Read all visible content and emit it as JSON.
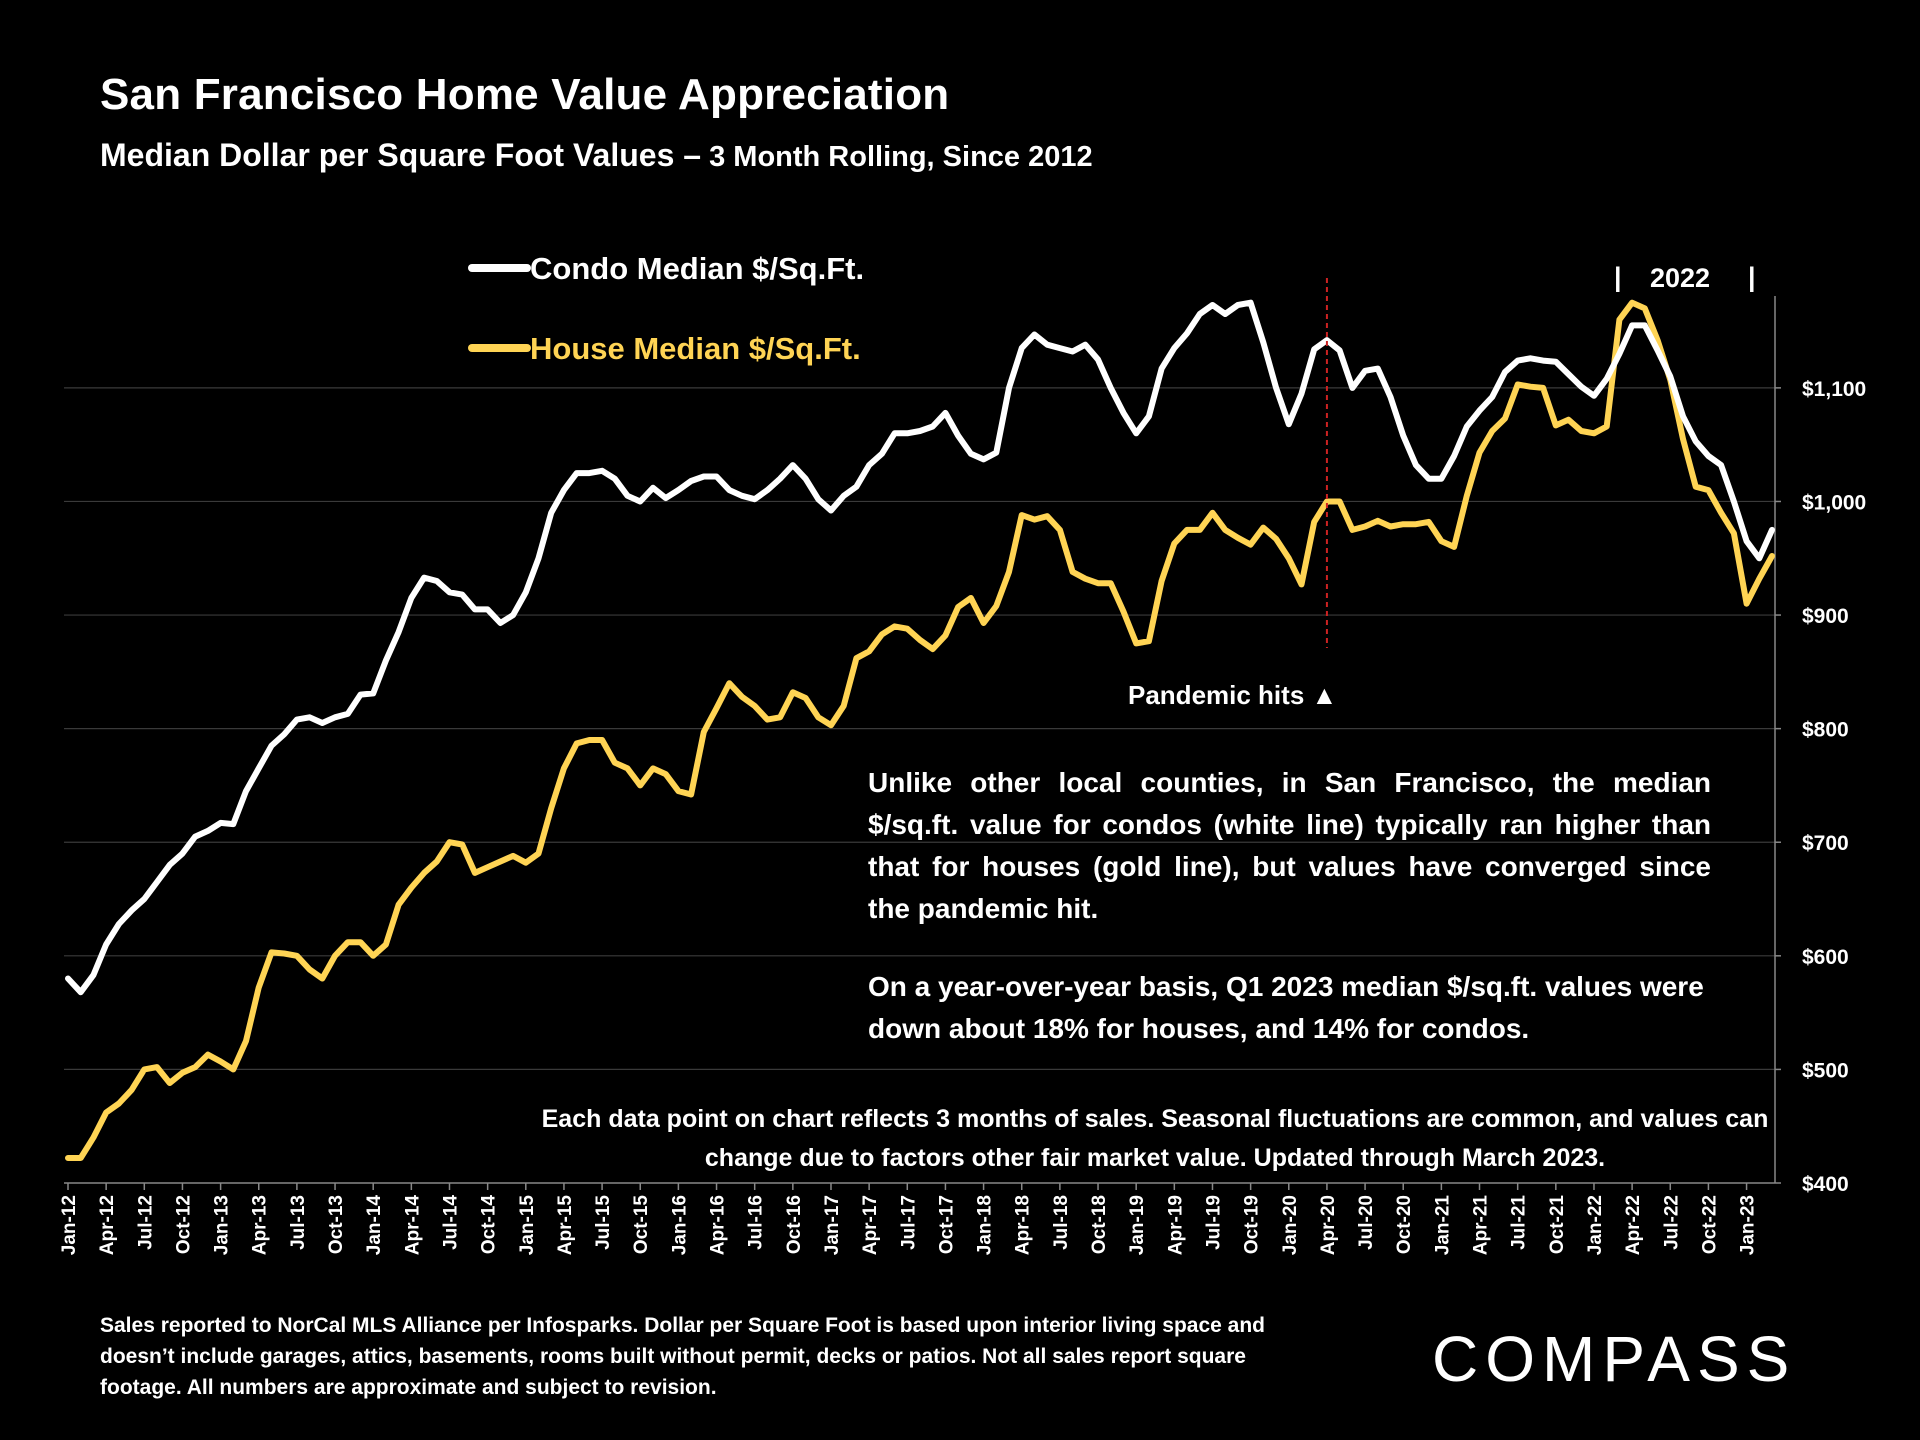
{
  "header": {
    "title": "San Francisco Home Value Appreciation",
    "subtitle_main": "Median Dollar per Square Foot Values –",
    "subtitle_small": " 3 Month Rolling, Since 2012"
  },
  "annotation": {
    "paragraph1": "Unlike other local counties, in San Francisco, the median $/sq.ft. value for condos (white line) typically ran higher than that for houses (gold line), but values have converged since the pandemic hit.",
    "paragraph2": "On a year-over-year basis, Q1 2023 median $/sq.ft. values were down about 18% for houses, and 14% for condos."
  },
  "note": "Each data point on chart reflects 3 months of sales. Seasonal fluctuations are common, and values can change due to factors other fair market value. Updated through March 2023.",
  "footer": "Sales reported to NorCal MLS Alliance per Infosparks. Dollar per Square Foot is based upon interior living space and doesn’t include garages, attics, basements, rooms built without permit, decks or patios. Not all sales report square footage. All numbers are approximate and subject to revision.",
  "brand": "COMPASS",
  "colors": {
    "condo": "#ffffff",
    "house": "#ffd454",
    "pandemic_line": "#cc2222",
    "grid": "#3a3a3a",
    "background": "#000000"
  },
  "chart_data": {
    "type": "line",
    "title": "San Francisco Home Value Appreciation",
    "ylim": [
      400,
      1180
    ],
    "yticks": [
      400,
      500,
      600,
      700,
      800,
      900,
      1000,
      1100
    ],
    "ytick_labels": [
      "$400",
      "$500",
      "$600",
      "$700",
      "$800",
      "$900",
      "$1,000",
      "$1,100"
    ],
    "xtick_labels": [
      "Jan-12",
      "Apr-12",
      "Jul-12",
      "Oct-12",
      "Jan-13",
      "Apr-13",
      "Jul-13",
      "Oct-13",
      "Jan-14",
      "Apr-14",
      "Jul-14",
      "Oct-14",
      "Jan-15",
      "Apr-15",
      "Jul-15",
      "Oct-15",
      "Jan-16",
      "Apr-16",
      "Jul-16",
      "Oct-16",
      "Jan-17",
      "Apr-17",
      "Jul-17",
      "Oct-17",
      "Jan-18",
      "Apr-18",
      "Jul-18",
      "Oct-18",
      "Jan-19",
      "Apr-19",
      "Jul-19",
      "Oct-19",
      "Jan-20",
      "Apr-20",
      "Jul-20",
      "Oct-20",
      "Jan-21",
      "Apr-21",
      "Jul-21",
      "Oct-21",
      "Jan-22",
      "Apr-22",
      "Jul-22",
      "Oct-22",
      "Jan-23"
    ],
    "x_start": "Jan-12",
    "x_end": "Mar-23",
    "legend": [
      "Condo Median $/Sq.Ft.",
      "House Median $/Sq.Ft."
    ],
    "series": [
      {
        "name": "Condo Median $/Sq.Ft.",
        "values": [
          580,
          568,
          583,
          610,
          628,
          640,
          650,
          665,
          680,
          690,
          705,
          710,
          717,
          716,
          745,
          765,
          785,
          795,
          808,
          810,
          805,
          810,
          813,
          830,
          831,
          860,
          885,
          915,
          933,
          930,
          920,
          918,
          905,
          905,
          893,
          900,
          920,
          950,
          990,
          1010,
          1025,
          1025,
          1027,
          1020,
          1005,
          1000,
          1012,
          1003,
          1010,
          1018,
          1022,
          1022,
          1010,
          1005,
          1002,
          1010,
          1020,
          1032,
          1020,
          1002,
          992,
          1005,
          1013,
          1032,
          1042,
          1060,
          1060,
          1062,
          1066,
          1078,
          1058,
          1042,
          1037,
          1043,
          1100,
          1135,
          1147,
          1138,
          1135,
          1132,
          1138,
          1125,
          1100,
          1078,
          1060,
          1075,
          1117,
          1135,
          1148,
          1165,
          1173,
          1165,
          1173,
          1175,
          1140,
          1100,
          1068,
          1095,
          1134,
          1142,
          1133,
          1100,
          1115,
          1117,
          1092,
          1058,
          1032,
          1020,
          1020,
          1040,
          1066,
          1080,
          1092,
          1114,
          1124,
          1126,
          1124,
          1123,
          1112,
          1101,
          1093,
          1108,
          1130,
          1155,
          1155,
          1133,
          1110,
          1075,
          1053,
          1040,
          1032,
          1000,
          965,
          950,
          975
        ]
      },
      {
        "name": "House Median $/Sq.Ft.",
        "values": [
          422,
          422,
          440,
          462,
          470,
          482,
          500,
          502,
          488,
          497,
          502,
          513,
          507,
          500,
          525,
          572,
          603,
          602,
          600,
          588,
          580,
          600,
          612,
          612,
          600,
          610,
          645,
          660,
          673,
          683,
          700,
          698,
          673,
          678,
          683,
          688,
          682,
          690,
          730,
          765,
          787,
          790,
          790,
          770,
          765,
          750,
          765,
          760,
          745,
          742,
          797,
          818,
          840,
          828,
          820,
          808,
          810,
          832,
          827,
          810,
          803,
          820,
          862,
          868,
          883,
          890,
          888,
          878,
          870,
          882,
          907,
          915,
          893,
          908,
          938,
          988,
          984,
          987,
          975,
          938,
          932,
          928,
          928,
          903,
          875,
          877,
          930,
          963,
          975,
          975,
          990,
          975,
          968,
          962,
          977,
          967,
          950,
          927,
          982,
          1000,
          1000,
          975,
          978,
          983,
          978,
          980,
          980,
          982,
          965,
          960,
          1005,
          1043,
          1062,
          1073,
          1103,
          1101,
          1100,
          1067,
          1072,
          1062,
          1060,
          1066,
          1160,
          1175,
          1170,
          1142,
          1107,
          1055,
          1013,
          1010,
          990,
          972,
          910,
          932,
          952
        ]
      }
    ],
    "annotations": {
      "pandemic_label": "Pandemic hits ▲",
      "pandemic_at": "Apr-20",
      "year_label": "2022"
    }
  }
}
